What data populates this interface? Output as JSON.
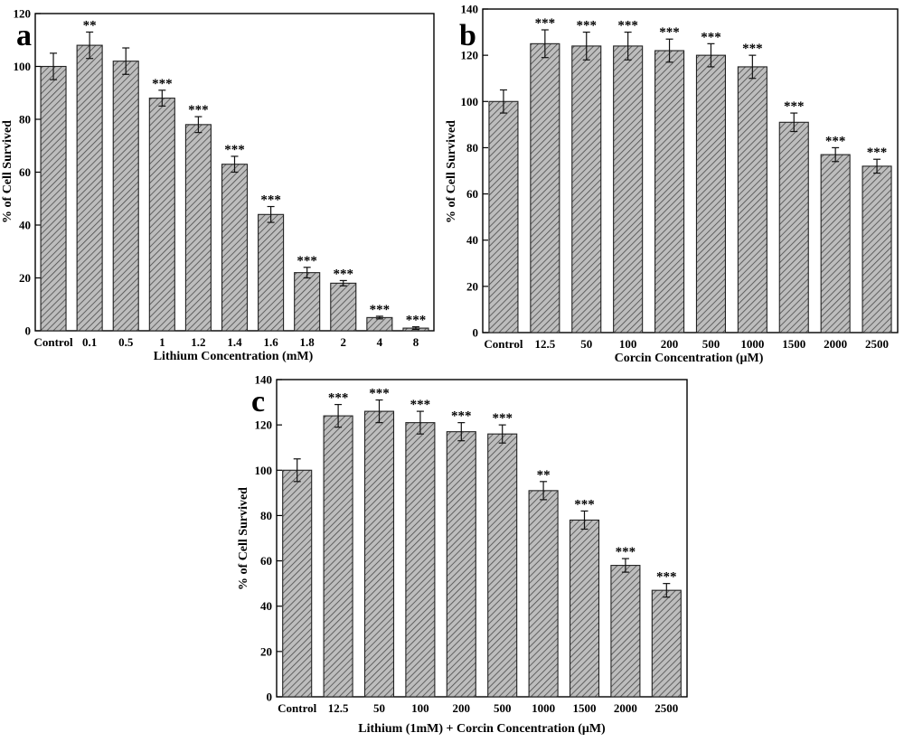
{
  "colors": {
    "bar_fill": "#bdbdbd",
    "hatch": "#4a4a4a",
    "axis": "#000000"
  },
  "chart_data": [
    {
      "panel": "a",
      "type": "bar",
      "xlabel": "Lithium Concentration (mM)",
      "ylabel": "% of Cell Survived",
      "ylim": [
        0,
        120
      ],
      "yticks": [
        0,
        20,
        40,
        60,
        80,
        100,
        120
      ],
      "categories": [
        "Control",
        "0.1",
        "0.5",
        "1",
        "1.2",
        "1.4",
        "1.6",
        "1.8",
        "2",
        "4",
        "8"
      ],
      "values": [
        100,
        108,
        102,
        88,
        78,
        63,
        44,
        22,
        18,
        5,
        1
      ],
      "errors": [
        5,
        5,
        5,
        3,
        3,
        3,
        3,
        2,
        1,
        0.5,
        0.5
      ],
      "significance": [
        "",
        "**",
        "",
        "***",
        "***",
        "***",
        "***",
        "***",
        "***",
        "***",
        "***"
      ],
      "grid": false
    },
    {
      "panel": "b",
      "type": "bar",
      "xlabel": "Corcin Concentration (μM)",
      "ylabel": "% of Cell Survived",
      "ylim": [
        0,
        140
      ],
      "yticks": [
        0,
        20,
        40,
        60,
        80,
        100,
        120,
        140
      ],
      "categories": [
        "Control",
        "12.5",
        "50",
        "100",
        "200",
        "500",
        "1000",
        "1500",
        "2000",
        "2500"
      ],
      "values": [
        100,
        125,
        124,
        124,
        122,
        120,
        115,
        91,
        77,
        72
      ],
      "errors": [
        5,
        6,
        6,
        6,
        5,
        5,
        5,
        4,
        3,
        3
      ],
      "significance": [
        "",
        "***",
        "***",
        "***",
        "***",
        "***",
        "***",
        "***",
        "***",
        "***"
      ],
      "grid": false
    },
    {
      "panel": "c",
      "type": "bar",
      "xlabel": "Lithium (1mM) + Corcin Concentration (μM)",
      "ylabel": "% of Cell Survived",
      "ylim": [
        0,
        140
      ],
      "yticks": [
        0,
        20,
        40,
        60,
        80,
        100,
        120,
        140
      ],
      "categories": [
        "Control",
        "12.5",
        "50",
        "100",
        "200",
        "500",
        "1000",
        "1500",
        "2000",
        "2500"
      ],
      "values": [
        100,
        124,
        126,
        121,
        117,
        116,
        91,
        78,
        58,
        47
      ],
      "errors": [
        5,
        5,
        5,
        5,
        4,
        4,
        4,
        4,
        3,
        3
      ],
      "significance": [
        "",
        "***",
        "***",
        "***",
        "***",
        "***",
        "**",
        "***",
        "***",
        "***"
      ],
      "grid": false
    }
  ]
}
